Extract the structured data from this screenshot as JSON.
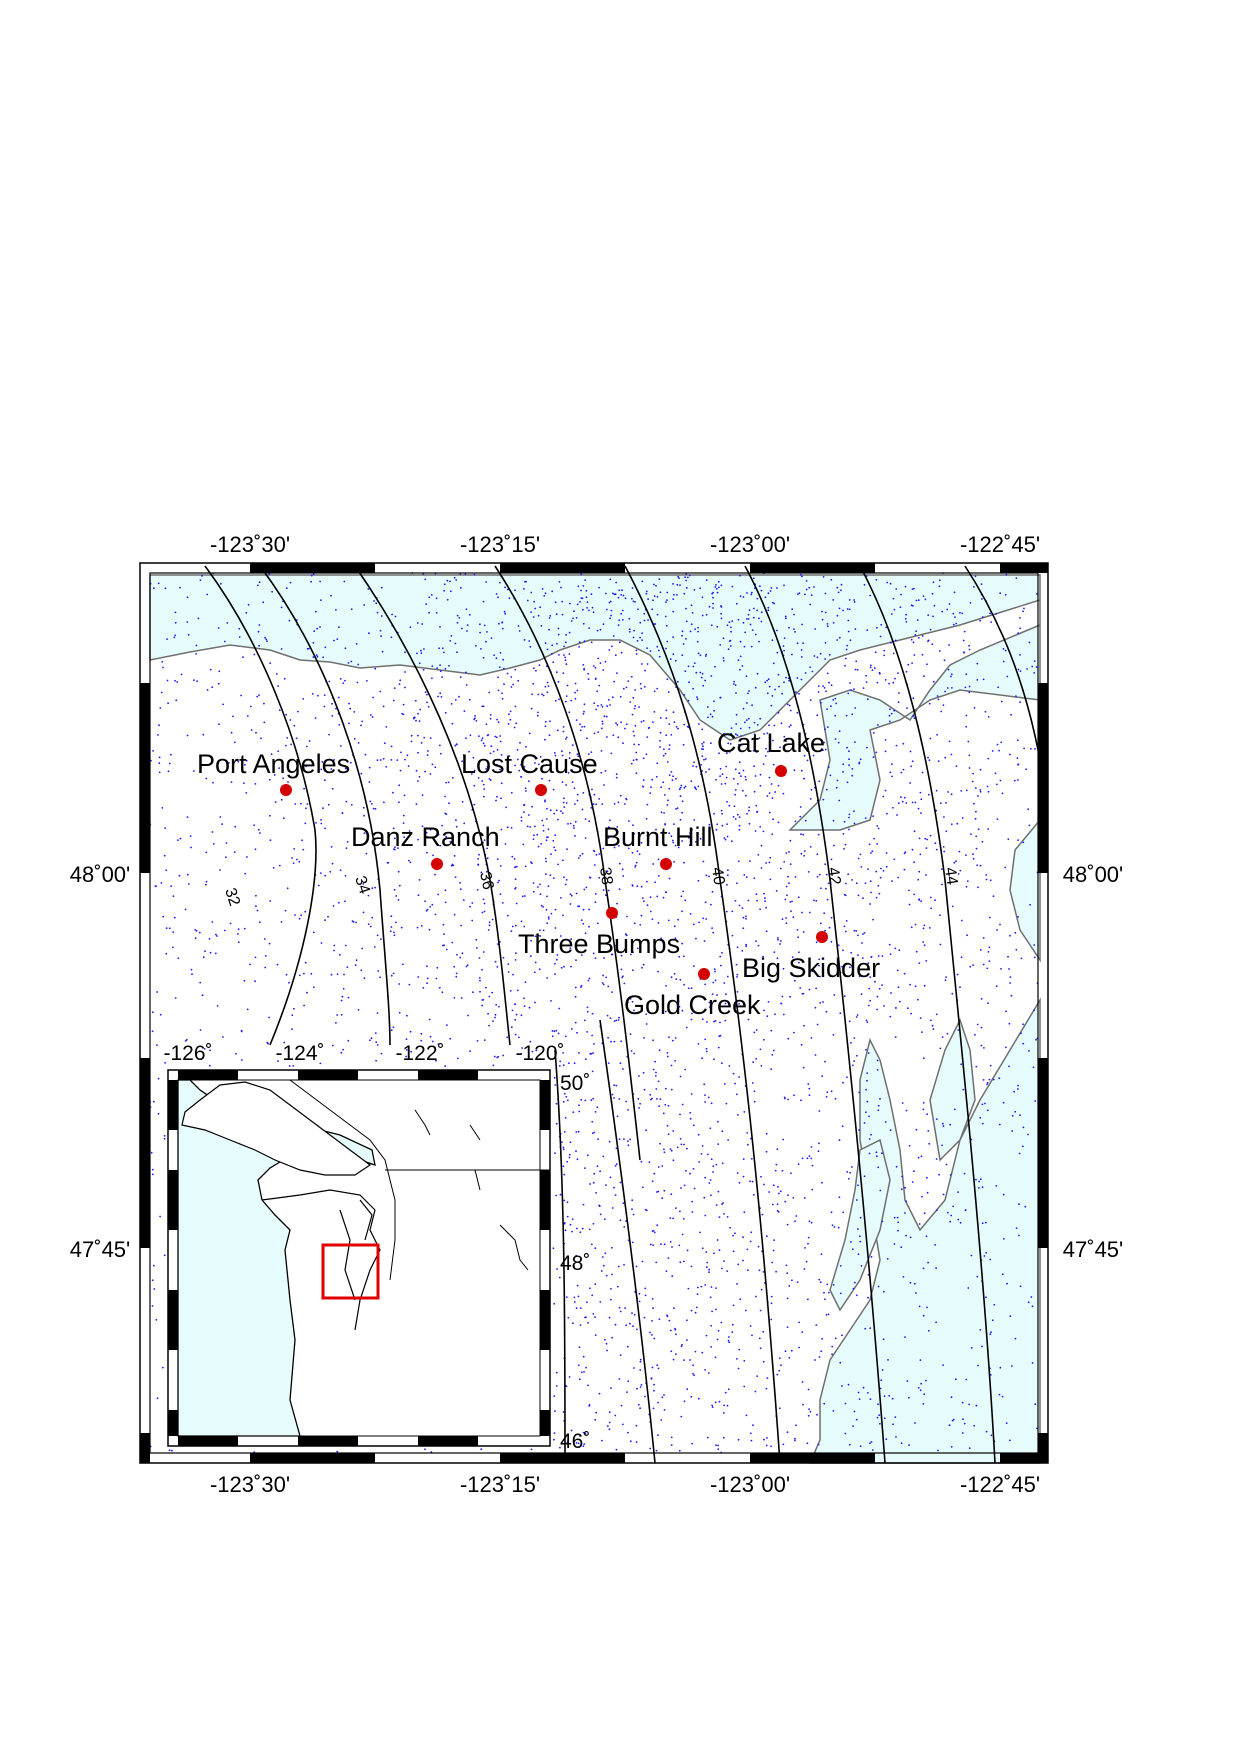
{
  "map": {
    "colors": {
      "water": "#e6fcfc",
      "land": "#ffffff",
      "dots": "#1a1aff",
      "sites": "#d40000",
      "coast": "#6f6f6f",
      "contour": "#000000",
      "inset_box": "#e00000"
    },
    "longitude_labels": [
      "-123˚30'",
      "-123˚15'",
      "-123˚00'",
      "-122˚45'"
    ],
    "latitude_labels": [
      "48˚00'",
      "47˚45'"
    ],
    "contour_labels": [
      "32",
      "34",
      "36",
      "38",
      "40",
      "42",
      "44"
    ],
    "sites": [
      {
        "name": "Port Angeles"
      },
      {
        "name": "Lost Cause"
      },
      {
        "name": "Cat Lake"
      },
      {
        "name": "Danz Ranch"
      },
      {
        "name": "Burnt Hill"
      },
      {
        "name": "Three Bumps"
      },
      {
        "name": "Big Skidder"
      },
      {
        "name": "Gold Creek"
      }
    ]
  },
  "inset": {
    "longitude_labels": [
      "-126˚",
      "-124˚",
      "-122˚",
      "-120˚"
    ],
    "latitude_labels": [
      "50˚",
      "48˚",
      "46˚"
    ]
  }
}
